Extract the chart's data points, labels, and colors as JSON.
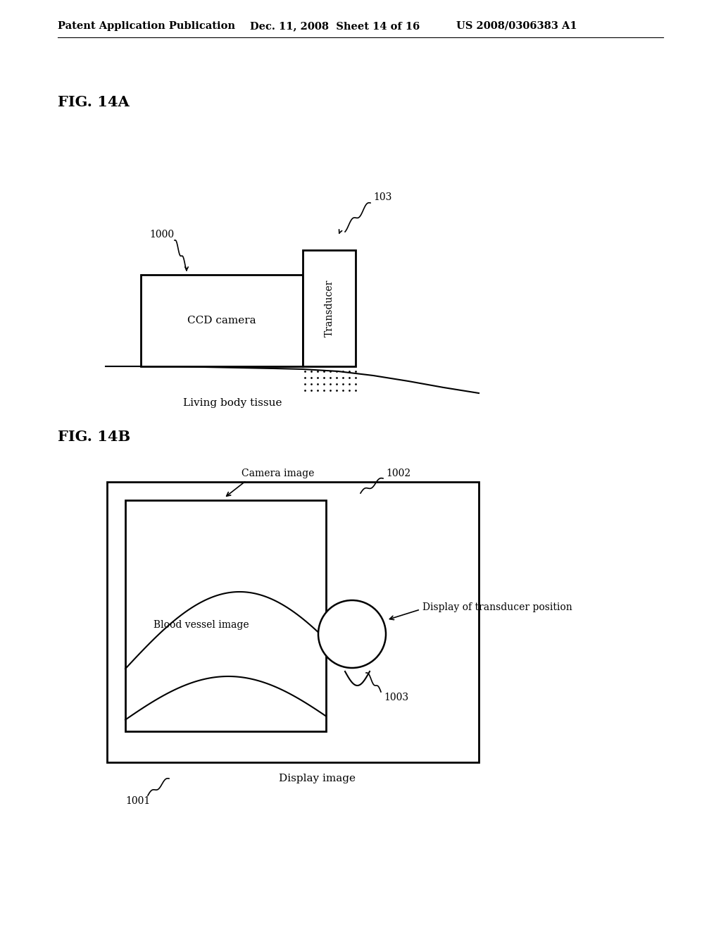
{
  "background_color": "#ffffff",
  "header_left": "Patent Application Publication",
  "header_center": "Dec. 11, 2008  Sheet 14 of 16",
  "header_right": "US 2008/0306383 A1",
  "fig14a_label": "FIG. 14A",
  "fig14b_label": "FIG. 14B",
  "label_1000": "1000",
  "label_103": "103",
  "label_1001": "1001",
  "label_1002": "1002",
  "label_1003": "1003",
  "text_ccd": "CCD camera",
  "text_transducer": "Transducer",
  "text_living_body": "Living body tissue",
  "text_camera_image": "Camera image",
  "text_blood_vessel": "Blood vessel image",
  "text_display_transducer": "Display of transducer position",
  "text_display_image": "Display image"
}
